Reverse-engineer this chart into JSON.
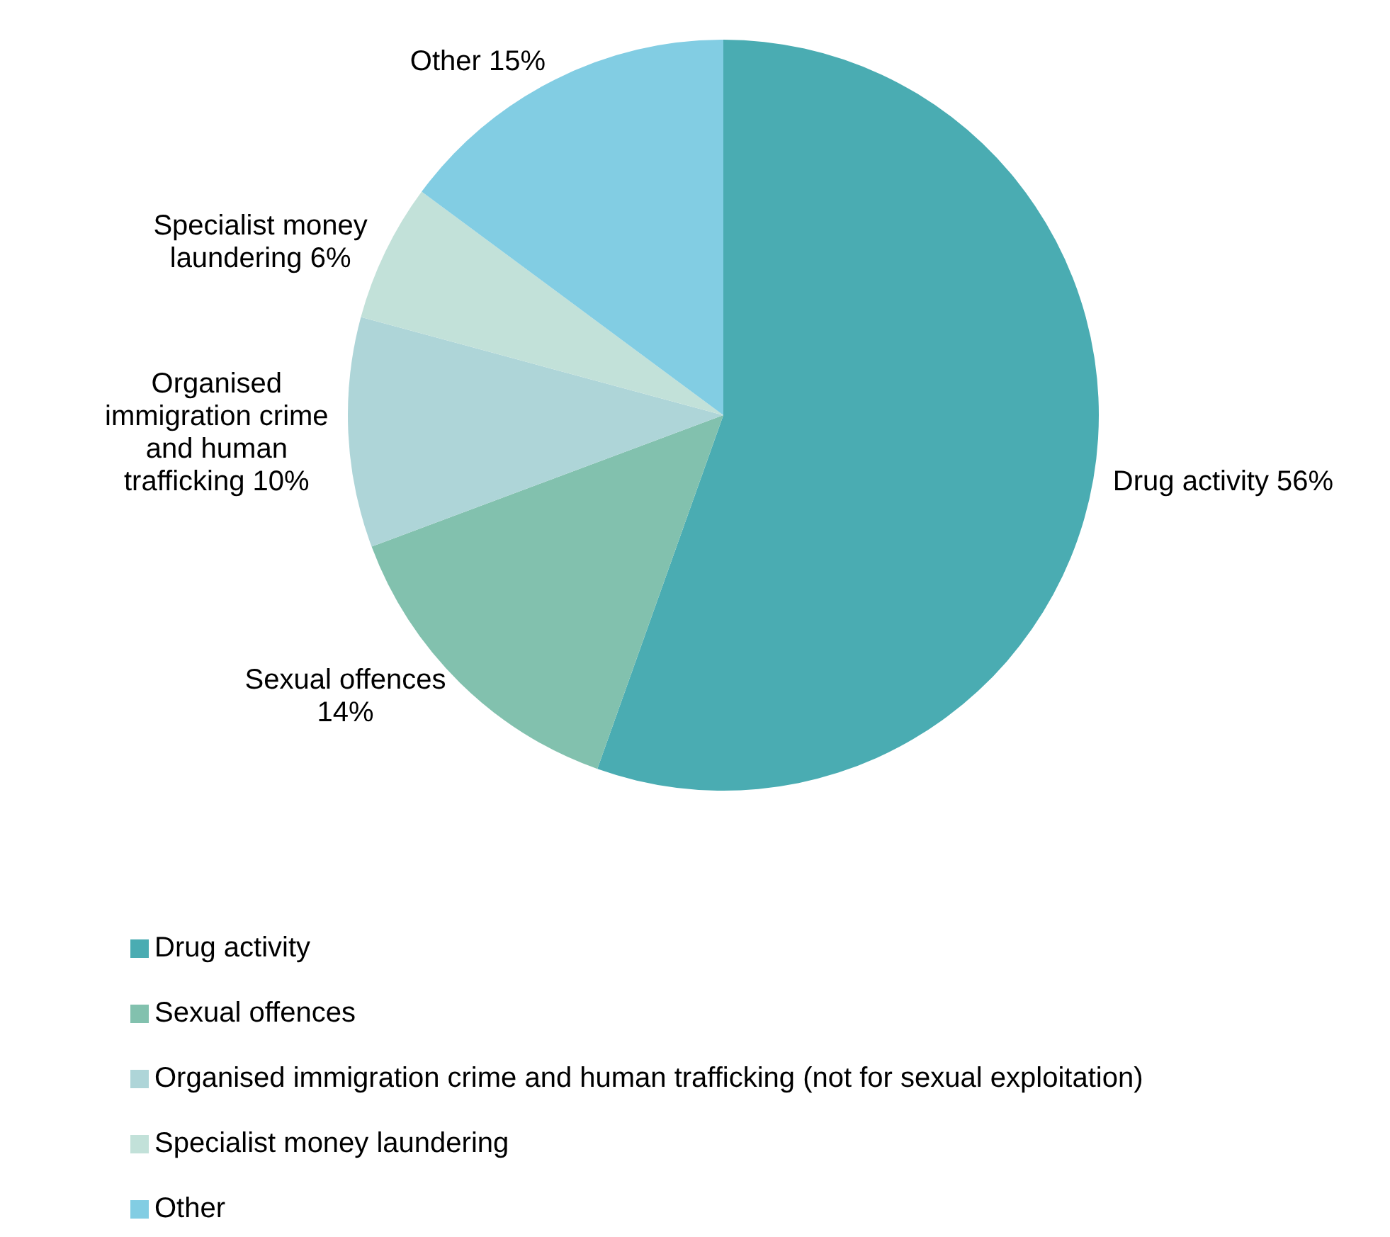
{
  "chart_data": {
    "type": "pie",
    "categories": [
      "Drug activity",
      "Sexual offences",
      "Organised immigration crime and human trafficking (not for sexual exploitation)",
      "Specialist money laundering",
      "Other"
    ],
    "values": [
      56,
      14,
      10,
      6,
      15
    ],
    "colors": [
      "#4aacb2",
      "#82c1ae",
      "#aed5d8",
      "#c2e1d9",
      "#82cde3"
    ],
    "value_labels": [
      "Drug activity 56%",
      "Sexual offences 14%",
      "Organised immigration crime and human trafficking 10%",
      "Specialist money laundering 6%",
      "Other 15%"
    ],
    "legend": "bottom"
  }
}
